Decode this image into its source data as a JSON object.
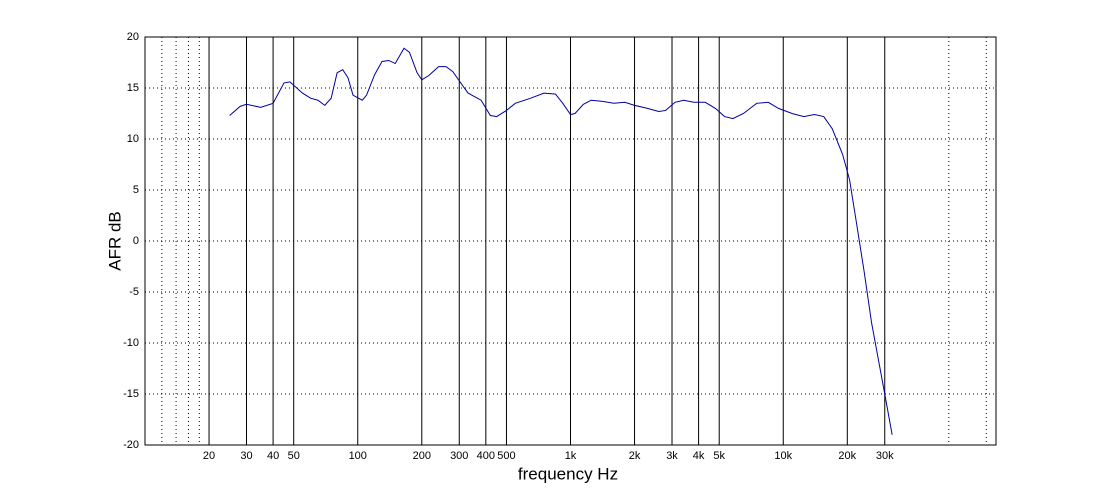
{
  "chart_data": {
    "type": "line",
    "xlabel": "frequency  Hz",
    "ylabel": "AFR dB",
    "xscale": "log",
    "xlim": [
      10,
      100000
    ],
    "ylim": [
      -20,
      20
    ],
    "xticks": [
      20,
      30,
      40,
      50,
      100,
      200,
      300,
      400,
      500,
      {
        "value": 1000,
        "label": "1k"
      },
      {
        "value": 2000,
        "label": "2k"
      },
      {
        "value": 3000,
        "label": "3k"
      },
      {
        "value": 4000,
        "label": "4k"
      },
      {
        "value": 5000,
        "label": "5k"
      },
      {
        "value": 10000,
        "label": "10k"
      },
      {
        "value": 20000,
        "label": "20k"
      },
      {
        "value": 30000,
        "label": "30k"
      }
    ],
    "xminor_ticks": [
      12,
      14,
      16,
      18,
      60000,
      90000
    ],
    "yticks": [
      -20,
      -15,
      -10,
      -5,
      0,
      5,
      10,
      15,
      20
    ],
    "grid": true,
    "series": [
      {
        "color": "#0000a0",
        "x": [
          25,
          28,
          30,
          35,
          40,
          45,
          48,
          55,
          60,
          65,
          70,
          75,
          80,
          85,
          90,
          95,
          105,
          110,
          120,
          130,
          140,
          150,
          165,
          175,
          190,
          200,
          215,
          240,
          260,
          280,
          300,
          330,
          380,
          420,
          450,
          500,
          550,
          650,
          750,
          850,
          920,
          1000,
          1050,
          1150,
          1250,
          1400,
          1600,
          1800,
          2000,
          2300,
          2600,
          2800,
          3100,
          3400,
          3800,
          4300,
          4800,
          5300,
          5800,
          6500,
          7500,
          8500,
          9500,
          11000,
          12500,
          14000,
          15500,
          17000,
          19000,
          20500,
          22000,
          24000,
          26000,
          30000,
          32500
        ],
        "values": [
          12.3,
          13.2,
          13.4,
          13.1,
          13.5,
          15.5,
          15.6,
          14.5,
          14,
          13.8,
          13.3,
          14,
          16.5,
          16.8,
          16,
          14.3,
          13.8,
          14.3,
          16.3,
          17.6,
          17.7,
          17.4,
          18.9,
          18.5,
          16.5,
          15.8,
          16.2,
          17.1,
          17.1,
          16.6,
          15.7,
          14.5,
          13.8,
          12.3,
          12.2,
          12.8,
          13.5,
          14,
          14.5,
          14.4,
          13.5,
          12.4,
          12.5,
          13.4,
          13.8,
          13.7,
          13.5,
          13.6,
          13.3,
          13,
          12.7,
          12.8,
          13.6,
          13.8,
          13.6,
          13.6,
          13,
          12.2,
          12,
          12.5,
          13.5,
          13.6,
          13,
          12.5,
          12.2,
          12.4,
          12.2,
          11,
          8.5,
          6,
          2,
          -3,
          -8,
          -15,
          -19
        ]
      }
    ]
  }
}
